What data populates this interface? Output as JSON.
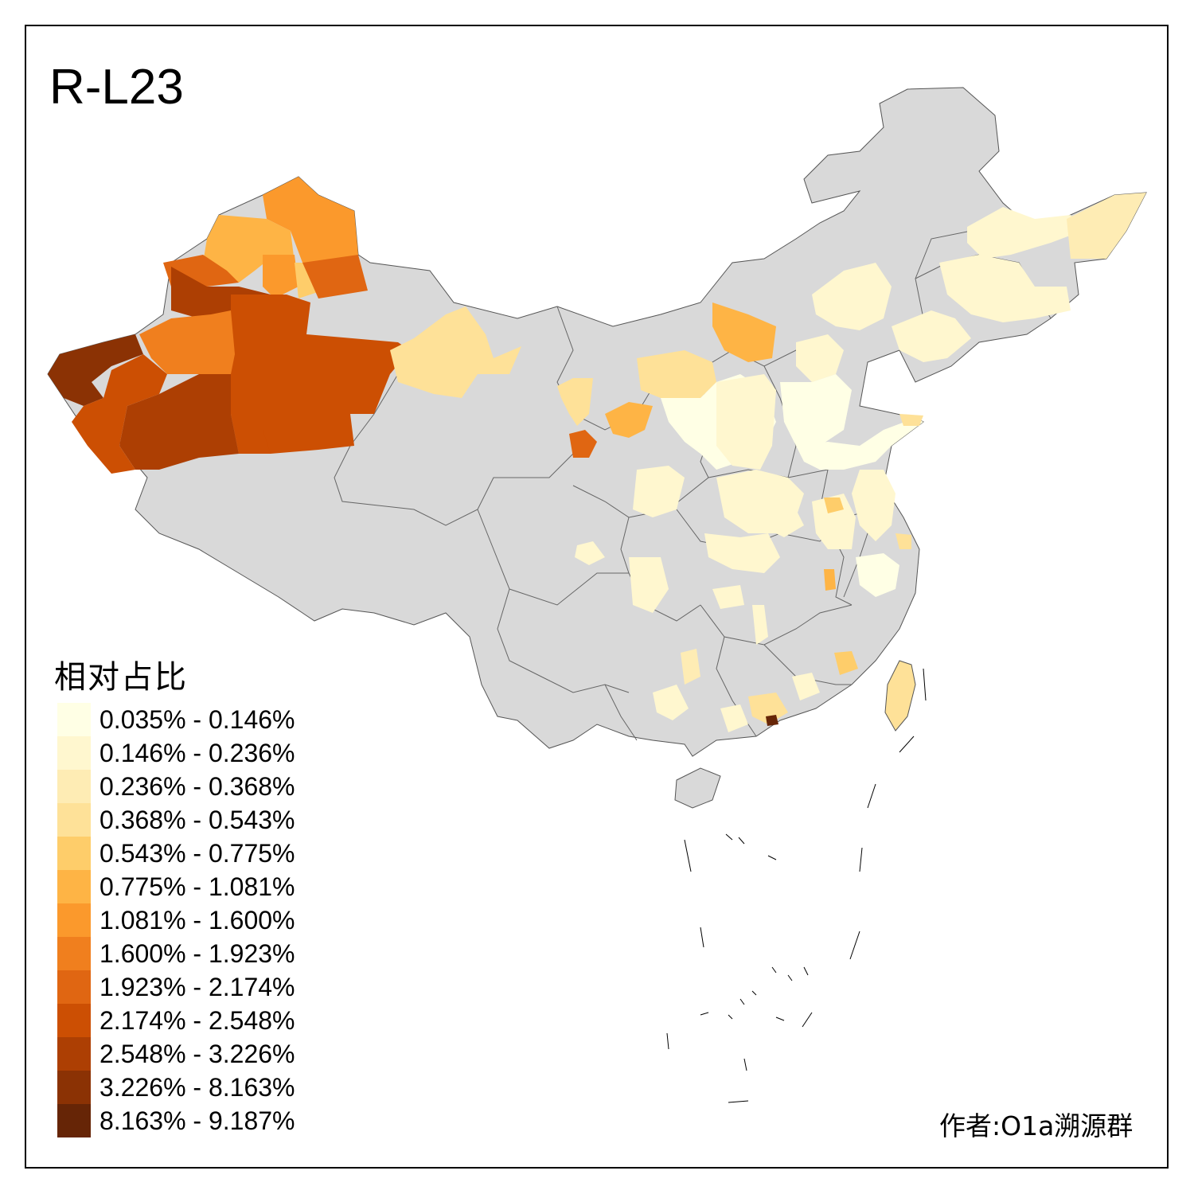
{
  "title": "R-L23",
  "legend": {
    "title": "相对占比",
    "items": [
      {
        "label": "0.035% - 0.146%",
        "color": "#ffffe5"
      },
      {
        "label": "0.146% - 0.236%",
        "color": "#fff7cf"
      },
      {
        "label": "0.236% - 0.368%",
        "color": "#feecb4"
      },
      {
        "label": "0.368% - 0.543%",
        "color": "#fee198"
      },
      {
        "label": "0.543% - 0.775%",
        "color": "#fecd6a"
      },
      {
        "label": "0.775% - 1.081%",
        "color": "#feb445"
      },
      {
        "label": "1.081% - 1.600%",
        "color": "#fb992c"
      },
      {
        "label": "1.600% - 1.923%",
        "color": "#f07f1e"
      },
      {
        "label": "1.923% - 2.174%",
        "color": "#e06612"
      },
      {
        "label": "2.174% - 2.548%",
        "color": "#cc4f03"
      },
      {
        "label": "2.548% - 3.226%",
        "color": "#ad3f03"
      },
      {
        "label": "3.226% - 8.163%",
        "color": "#8b3204"
      },
      {
        "label": "8.163% - 9.187%",
        "color": "#662506"
      }
    ]
  },
  "credit": "作者:O1a溯源群",
  "colors": {
    "no_data": "#d9d9d9",
    "border": "#555555"
  }
}
